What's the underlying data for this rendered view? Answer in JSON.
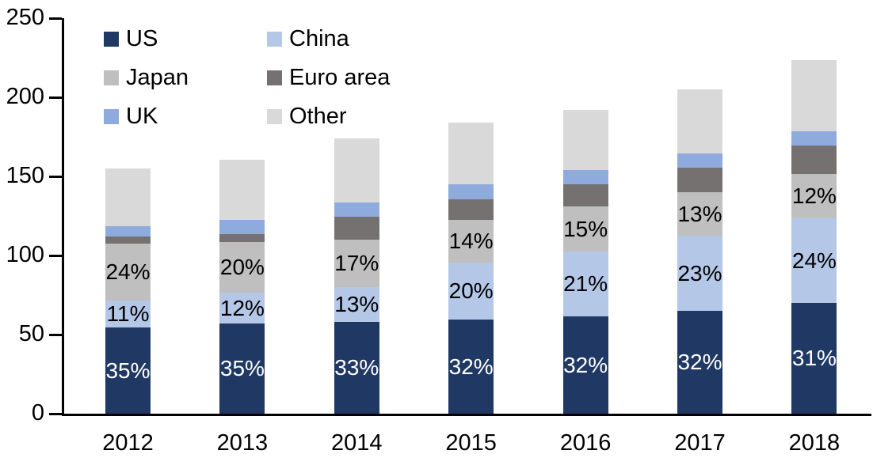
{
  "chart_data": {
    "type": "bar",
    "subtype": "stacked",
    "categories": [
      "2012",
      "2013",
      "2014",
      "2015",
      "2016",
      "2017",
      "2018"
    ],
    "series": [
      {
        "name": "US",
        "color": "#1F3864",
        "values": [
          54.5,
          57,
          58,
          59.5,
          61.5,
          65,
          70
        ],
        "labels": [
          "35%",
          "35%",
          "33%",
          "32%",
          "32%",
          "32%",
          "31%"
        ],
        "label_color": "#FFFFFF"
      },
      {
        "name": "China",
        "color": "#B4C7E7",
        "values": [
          17,
          19.5,
          22,
          36,
          41,
          47.5,
          53.5
        ],
        "labels": [
          "11%",
          "12%",
          "13%",
          "20%",
          "21%",
          "23%",
          "24%"
        ],
        "label_color": "#000000"
      },
      {
        "name": "Japan",
        "color": "#BFBFBF",
        "values": [
          36,
          32,
          30,
          27,
          28.5,
          27.5,
          28
        ],
        "labels": [
          "24%",
          "20%",
          "17%",
          "14%",
          "15%",
          "13%",
          "12%"
        ],
        "label_color": "#000000"
      },
      {
        "name": "Euro area",
        "color": "#767171",
        "values": [
          4.5,
          5,
          14.5,
          13,
          14,
          15.5,
          18
        ],
        "labels": null,
        "label_color": null
      },
      {
        "name": "UK",
        "color": "#8FAADC",
        "values": [
          6.5,
          9,
          9,
          9.5,
          9,
          9,
          9
        ],
        "labels": null,
        "label_color": null
      },
      {
        "name": "Other",
        "color": "#D9D9D9",
        "values": [
          36.5,
          38,
          40.5,
          39,
          38,
          40.5,
          45
        ],
        "labels": null,
        "label_color": null
      }
    ],
    "stack_order_bottom_to_top": [
      "US",
      "China",
      "Japan",
      "Euro area",
      "UK",
      "Other"
    ],
    "title": "",
    "xlabel": "",
    "ylabel": "",
    "ylim": [
      0,
      250
    ],
    "y_ticks": [
      0,
      50,
      100,
      150,
      200,
      250
    ],
    "y_tick_labels": [
      "0",
      "50",
      "100",
      "150",
      "200",
      "250"
    ],
    "grid": false,
    "legend_position": "top-left",
    "legend_columns": 2,
    "legend_order_row_wise": [
      "US",
      "China",
      "Japan",
      "Euro area",
      "UK",
      "Other"
    ],
    "axis_color": "#000000",
    "background_color": "#FFFFFF"
  }
}
